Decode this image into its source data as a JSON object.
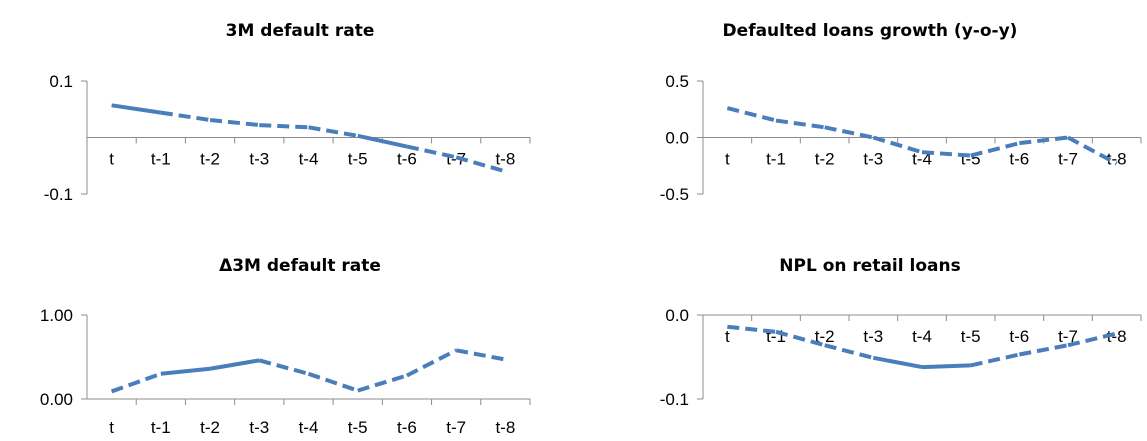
{
  "colors": {
    "series": "#4a7ebb",
    "axis": "#8c8c8c"
  },
  "chart_data": [
    {
      "type": "line",
      "title": "3M default rate",
      "categories": [
        "t",
        "t-1",
        "t-2",
        "t-3",
        "t-4",
        "t-5",
        "t-6",
        "t-7",
        "t-8"
      ],
      "values": [
        0.057,
        0.044,
        0.031,
        0.022,
        0.018,
        0.003,
        -0.016,
        -0.035,
        -0.06
      ],
      "segment_styles": [
        "solid",
        "dashed",
        "dashed",
        "dashed",
        "dashed",
        "solid",
        "dashed",
        "dashed"
      ],
      "ylim": [
        -0.1,
        0.1
      ],
      "yticks": [
        0.1,
        -0.1
      ],
      "ytick_labels": [
        "0.1",
        "-0.1"
      ]
    },
    {
      "type": "line",
      "title": "Defaulted loans growth (y-o-y)",
      "categories": [
        "t",
        "t-1",
        "t-2",
        "t-3",
        "t-4",
        "t-5",
        "t-6",
        "t-7",
        "t-8"
      ],
      "values": [
        0.26,
        0.15,
        0.09,
        0.0,
        -0.13,
        -0.16,
        -0.05,
        0.0,
        -0.23
      ],
      "segment_styles": [
        "dashed",
        "dashed",
        "dashed",
        "dashed",
        "dashed",
        "dashed",
        "dashed",
        "dashed"
      ],
      "ylim": [
        -0.5,
        0.5
      ],
      "yticks": [
        0.5,
        0.0,
        -0.5
      ],
      "ytick_labels": [
        "0.5",
        "0.0",
        "-0.5"
      ]
    },
    {
      "type": "line",
      "title": "Δ3M default rate",
      "categories": [
        "t",
        "t-1",
        "t-2",
        "t-3",
        "t-4",
        "t-5",
        "t-6",
        "t-7",
        "t-8"
      ],
      "values": [
        0.09,
        0.3,
        0.36,
        0.46,
        0.3,
        0.1,
        0.28,
        0.58,
        0.47
      ],
      "segment_styles": [
        "dashed",
        "solid",
        "solid",
        "dashed",
        "dashed",
        "dashed",
        "dashed",
        "dashed"
      ],
      "ylim": [
        0.0,
        1.0
      ],
      "yticks": [
        1.0,
        0.0
      ],
      "ytick_labels": [
        "1.00",
        "0.00"
      ]
    },
    {
      "type": "line",
      "title": "NPL on retail loans",
      "categories": [
        "t",
        "t-1",
        "t-2",
        "t-3",
        "t-4",
        "t-5",
        "t-6",
        "t-7",
        "t-8"
      ],
      "values": [
        -0.014,
        -0.02,
        -0.036,
        -0.051,
        -0.062,
        -0.06,
        -0.047,
        -0.036,
        -0.022
      ],
      "segment_styles": [
        "dashed",
        "dashed",
        "dashed",
        "solid",
        "solid",
        "dashed",
        "dashed",
        "dashed"
      ],
      "ylim": [
        -0.1,
        0.0
      ],
      "yticks": [
        0.0,
        -0.1
      ],
      "ytick_labels": [
        "0.0",
        "-0.1"
      ]
    }
  ]
}
